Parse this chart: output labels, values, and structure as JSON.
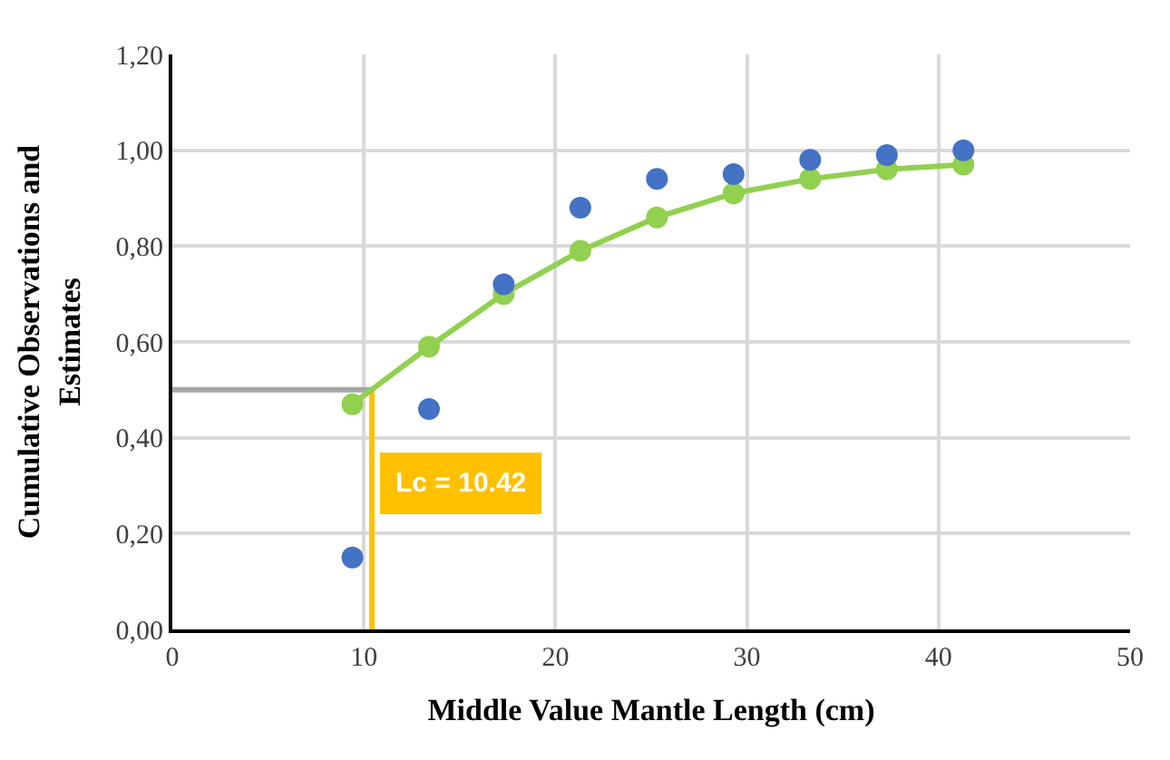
{
  "chart_data": {
    "type": "scatter",
    "xlabel": "Middle Value Mantle Length (cm)",
    "ylabel": "Cumulative Observations and Estimates",
    "x": [
      9.4,
      13.4,
      17.3,
      21.3,
      25.3,
      29.3,
      33.3,
      37.3,
      41.3
    ],
    "series": [
      {
        "type": "line",
        "color": "#92d050",
        "marker": "circle",
        "line_style": "solid",
        "values": [
          0.47,
          0.59,
          0.7,
          0.79,
          0.86,
          0.91,
          0.94,
          0.96,
          0.97
        ]
      },
      {
        "color": "#4472c4",
        "marker": "circle",
        "values": [
          0.15,
          0.46,
          0.72,
          0.88,
          0.94,
          0.95,
          0.98,
          0.99,
          1.0
        ]
      }
    ],
    "ref_lines": [
      {
        "axis": "y",
        "value": 0.5,
        "label": null,
        "color": "#a6a6a6"
      },
      {
        "axis": "x",
        "value": 10.42,
        "label": "Lc = 10.42",
        "color": "#ffc000"
      }
    ],
    "xlim": [
      0,
      50
    ],
    "xticks": [
      0,
      10,
      20,
      30,
      40,
      50
    ],
    "ylim": [
      0,
      1.2
    ],
    "yticks": [
      {
        "value": 0,
        "label": "0,00"
      },
      {
        "value": 0.2,
        "label": "0,20"
      },
      {
        "value": 0.4,
        "label": "0,40"
      },
      {
        "value": 0.6,
        "label": "0,60"
      },
      {
        "value": 0.8,
        "label": "0,80"
      },
      {
        "value": 1.0,
        "label": "1,00"
      },
      {
        "value": 1.2,
        "label": "1,20"
      }
    ],
    "grid": true
  }
}
